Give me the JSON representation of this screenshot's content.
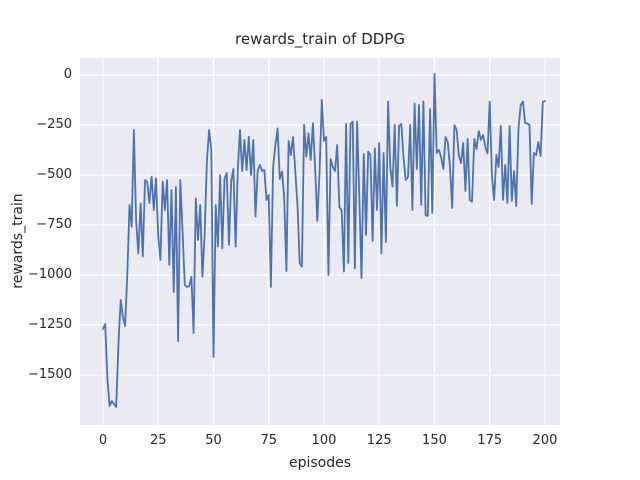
{
  "figure": {
    "background": "#ffffff",
    "axes_background": "#eaeaf2",
    "grid_color": "#ffffff",
    "text_color": "#262626",
    "line_color": "#4c72b0"
  },
  "chart_data": {
    "type": "line",
    "title": "rewards_train of DDPG",
    "xlabel": "episodes",
    "ylabel": "rewards_train",
    "grid": true,
    "legend": false,
    "xlim": [
      -10.4,
      206.8
    ],
    "ylim": [
      -1750,
      85
    ],
    "x_ticks": [
      0,
      25,
      50,
      75,
      100,
      125,
      150,
      175,
      200
    ],
    "y_ticks": [
      0,
      -250,
      -500,
      -750,
      -1000,
      -1250,
      -1500
    ],
    "series": [
      {
        "name": "rewards_train",
        "color": "#4c72b0",
        "x_start": 0,
        "x_step": 1,
        "y": [
          -1270,
          -1245,
          -1520,
          -1655,
          -1630,
          -1645,
          -1660,
          -1340,
          -1125,
          -1210,
          -1255,
          -1000,
          -650,
          -758,
          -275,
          -725,
          -892,
          -642,
          -908,
          -525,
          -535,
          -640,
          -508,
          -675,
          -517,
          -800,
          -925,
          -533,
          -675,
          -525,
          -950,
          -575,
          -1085,
          -560,
          -1330,
          -525,
          -775,
          -1050,
          -1060,
          -1055,
          -1010,
          -1290,
          -617,
          -825,
          -650,
          -1008,
          -800,
          -430,
          -275,
          -375,
          -1410,
          -650,
          -858,
          -500,
          -867,
          -520,
          -490,
          -850,
          -530,
          -470,
          -858,
          -475,
          -275,
          -480,
          -325,
          -475,
          -308,
          -500,
          -325,
          -708,
          -480,
          -450,
          -480,
          -475,
          -625,
          -600,
          -1060,
          -460,
          -350,
          -267,
          -520,
          -483,
          -610,
          -980,
          -330,
          -400,
          -310,
          -475,
          -650,
          -942,
          -958,
          -250,
          -408,
          -292,
          -425,
          -240,
          -460,
          -730,
          -480,
          -125,
          -330,
          -310,
          -1000,
          -420,
          -460,
          -480,
          -350,
          -660,
          -680,
          -983,
          -245,
          -940,
          -245,
          -233,
          -967,
          -233,
          -600,
          -1015,
          -395,
          -800,
          -383,
          -400,
          -830,
          -367,
          -675,
          -340,
          -892,
          -390,
          -835,
          -133,
          -460,
          -558,
          -250,
          -655,
          -255,
          -245,
          -410,
          -525,
          -510,
          -250,
          -675,
          -142,
          -470,
          -150,
          -650,
          -133,
          -700,
          -705,
          -170,
          -690,
          5,
          -390,
          -375,
          -410,
          -470,
          -310,
          -333,
          -455,
          -665,
          -250,
          -275,
          -400,
          -440,
          -340,
          -580,
          -320,
          -625,
          -633,
          -320,
          -370,
          -280,
          -325,
          -300,
          -360,
          -392,
          -133,
          -500,
          -625,
          -400,
          -460,
          -255,
          -625,
          -450,
          -640,
          -255,
          -630,
          -480,
          -655,
          -265,
          -150,
          -133,
          -240,
          -242,
          -250,
          -645,
          -390,
          -400,
          -335,
          -405,
          -135,
          -130
        ]
      }
    ]
  }
}
